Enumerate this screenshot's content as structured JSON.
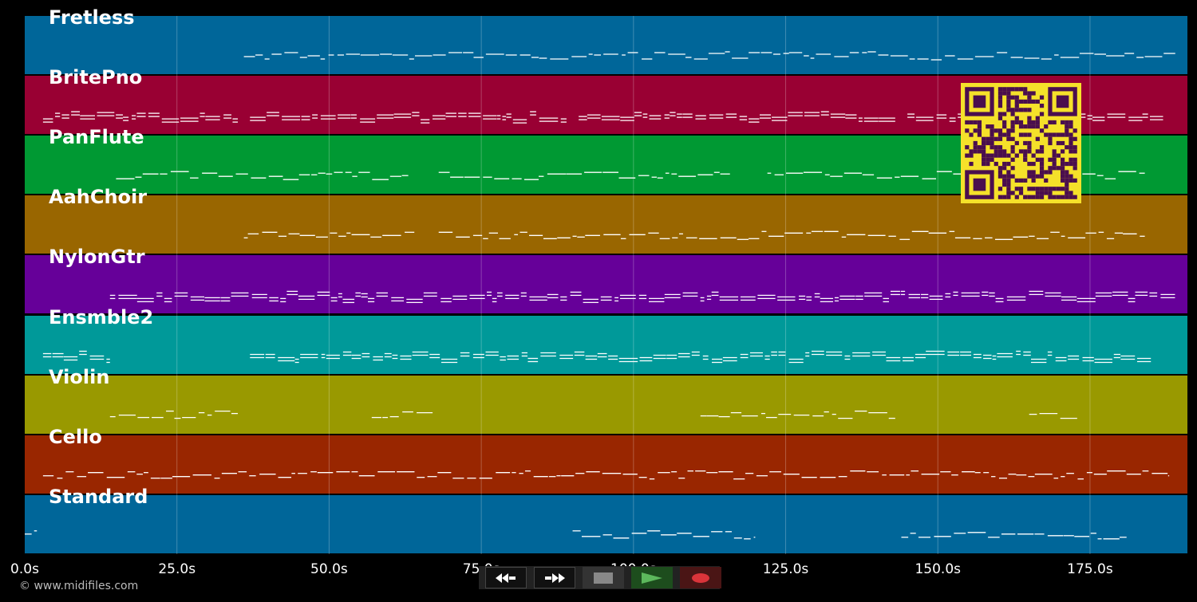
{
  "tracks": [
    {
      "name": "Fretless",
      "color": "#006699"
    },
    {
      "name": "BritePno",
      "color": "#990033"
    },
    {
      "name": "PanFlute",
      "color": "#009933"
    },
    {
      "name": "AahChoir",
      "color": "#996600"
    },
    {
      "name": "NylonGtr",
      "color": "#660099"
    },
    {
      "name": "Ensmble2",
      "color": "#009999"
    },
    {
      "name": "Violin",
      "color": "#999900"
    },
    {
      "name": "Cello",
      "color": "#992600"
    },
    {
      "name": "Standard",
      "color": "#006699"
    }
  ],
  "timeline": {
    "ticks": [
      "0.0s",
      "25.0s",
      "50.0s",
      "75.0s",
      "100.0s",
      "125.0s",
      "150.0s",
      "175.0s"
    ],
    "tick_values": [
      0,
      25,
      50,
      75,
      100,
      125,
      150,
      175
    ],
    "max_seconds": 191
  },
  "copyright": "© www.midifiles.com",
  "controls": {
    "rewind": "rewind-icon",
    "fast_forward": "fast-forward-icon",
    "stop": "stop-icon",
    "play": "play-icon",
    "record": "record-icon"
  },
  "qr_code": "qr-code"
}
